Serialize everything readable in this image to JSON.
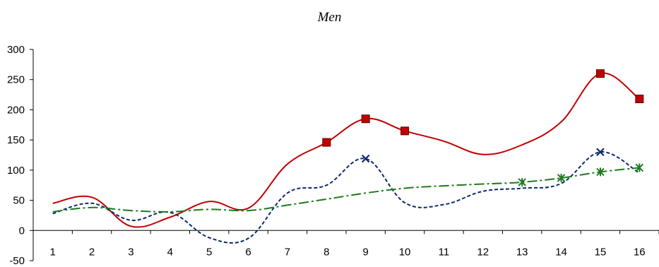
{
  "chart_data": {
    "type": "line",
    "title": "Men",
    "xlabel": "",
    "ylabel": "",
    "categories": [
      "1",
      "2",
      "3",
      "4",
      "5",
      "6",
      "7",
      "8",
      "9",
      "10",
      "11",
      "12",
      "13",
      "14",
      "15",
      "16"
    ],
    "ylim": [
      -50,
      300
    ],
    "yticks": [
      -50,
      0,
      50,
      100,
      150,
      200,
      250,
      300
    ],
    "grid": false,
    "legend": "none",
    "series": [
      {
        "color": "#c00000",
        "style": "solid",
        "marker": "square",
        "values": [
          45,
          55,
          7,
          22,
          48,
          37,
          110,
          146,
          185,
          165,
          148,
          126,
          142,
          180,
          260,
          218
        ],
        "marked_points": [
          8,
          9,
          10,
          15,
          16
        ]
      },
      {
        "color": "#0b2a6b",
        "style": "dashed",
        "marker": "x",
        "values": [
          28,
          45,
          17,
          30,
          -12,
          -13,
          62,
          75,
          119,
          46,
          43,
          65,
          70,
          78,
          130,
          95
        ],
        "marked_points": [
          9,
          15
        ]
      },
      {
        "color": "#1e7a1e",
        "style": "dashdot",
        "marker": "asterisk",
        "values": [
          31,
          38,
          33,
          31,
          35,
          33,
          42,
          52,
          62,
          70,
          74,
          77,
          80,
          87,
          97,
          104
        ],
        "marked_points": [
          13,
          14,
          15,
          16
        ]
      }
    ]
  }
}
